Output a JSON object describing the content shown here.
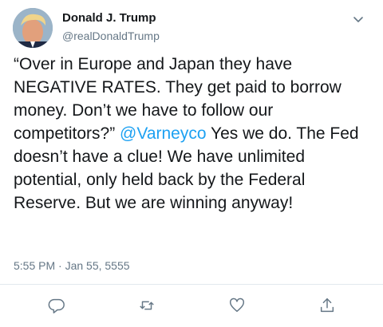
{
  "author": {
    "name": "Donald J. Trump",
    "handle": "@realDonaldTrump"
  },
  "tweet": {
    "part1": "“Over in Europe and Japan they have NEGATIVE RATES. They get paid to borrow money. Don’t we have to follow our competitors?” ",
    "mention": "@Varneyco",
    "part2": " Yes we do. The Fed doesn’t have a clue! We have unlimited potential, only held back by the Federal Reserve. But we are winning anyway!"
  },
  "timestamp": "5:55 PM · Jan 55, 5555",
  "icons": {
    "menu": "chevron-down-icon",
    "reply": "reply-icon",
    "retweet": "retweet-icon",
    "like": "like-icon",
    "share": "share-icon"
  },
  "colors": {
    "text": "#14171a",
    "secondary": "#657786",
    "accent": "#1da1f2",
    "divider": "#e1e8ed"
  }
}
